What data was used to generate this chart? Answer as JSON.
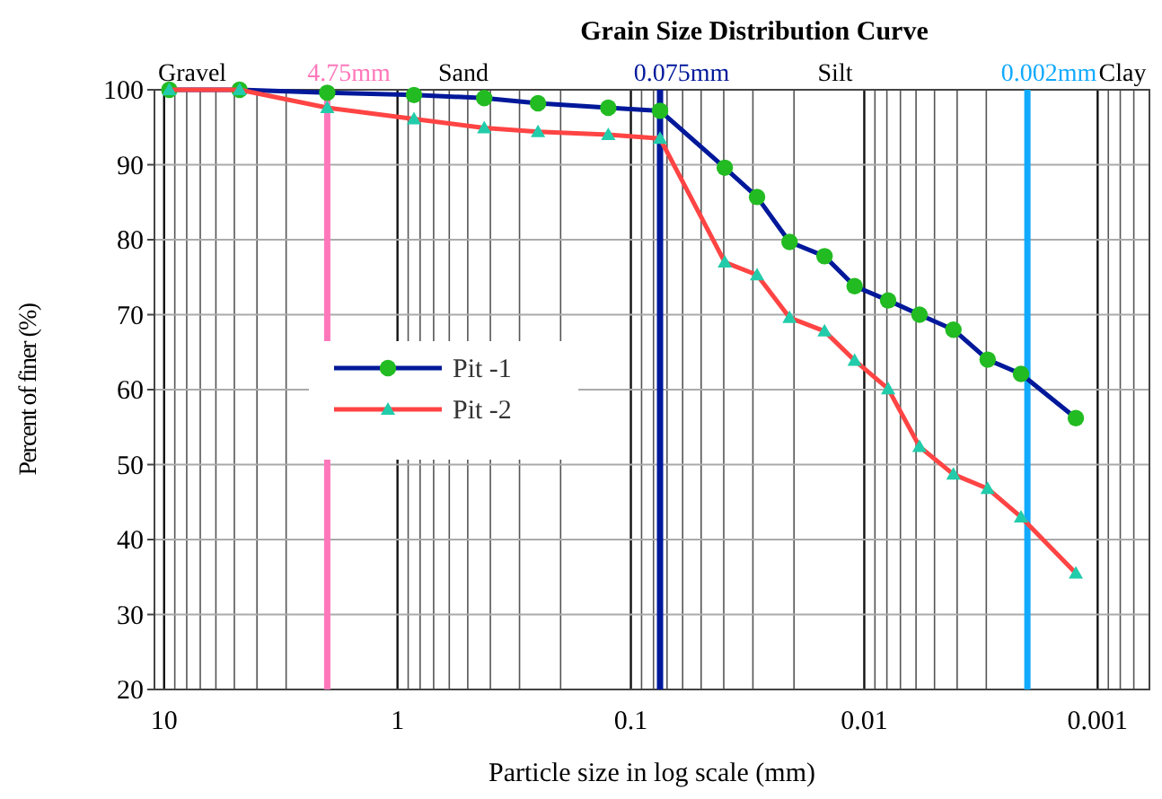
{
  "chart_data": {
    "type": "line",
    "title": "Grain Size Distribution Curve",
    "xlabel": "Particle size in log scale (mm)",
    "ylabel": "Percent of finer (%)",
    "annotations": [
      "Gravel",
      "Sand",
      "Silt",
      "Clay"
    ],
    "x": [
      9.5,
      4.75,
      2.0,
      0.85,
      0.425,
      0.25,
      0.125,
      0.075,
      0.0396,
      0.0288,
      0.0209,
      0.0148,
      0.011,
      0.0079,
      0.0058,
      0.00415,
      0.00296,
      0.00213,
      0.00124
    ],
    "series": [
      {
        "name": "Pit -1",
        "color": "#00189a",
        "marker": "circle",
        "values": [
          100,
          100,
          99.6,
          99.3,
          98.9,
          98.2,
          97.6,
          97.2,
          89.6,
          85.7,
          79.7,
          77.8,
          73.8,
          71.9,
          70.0,
          68.0,
          64.0,
          62.1,
          56.2
        ]
      },
      {
        "name": "Pit -2",
        "color": "#ff4444",
        "marker": "triangle",
        "values": [
          100,
          100,
          97.6,
          96.1,
          94.9,
          94.4,
          94.0,
          93.5,
          77.0,
          75.3,
          69.6,
          67.8,
          63.9,
          60.1,
          52.4,
          48.7,
          46.8,
          43.0,
          35.5
        ]
      }
    ],
    "log": "x",
    "xlim": [
      11,
      0.0006
    ],
    "xticks": [
      10,
      1,
      0.1,
      0.01,
      0.001
    ],
    "ylim": [
      20,
      100
    ],
    "yticks": [
      20,
      30,
      40,
      50,
      60,
      70,
      80,
      90,
      100
    ],
    "ref_lines": [
      {
        "axis": "x",
        "value": 2,
        "label": "4.75mm",
        "color": "#ff77bb"
      },
      {
        "axis": "x",
        "value": 0.075,
        "label": "0.075mm",
        "color": "#00189a"
      },
      {
        "axis": "x",
        "value": 0.002,
        "label": "0.002mm",
        "color": "#11aaff"
      }
    ],
    "grid": true,
    "legend": "left"
  }
}
